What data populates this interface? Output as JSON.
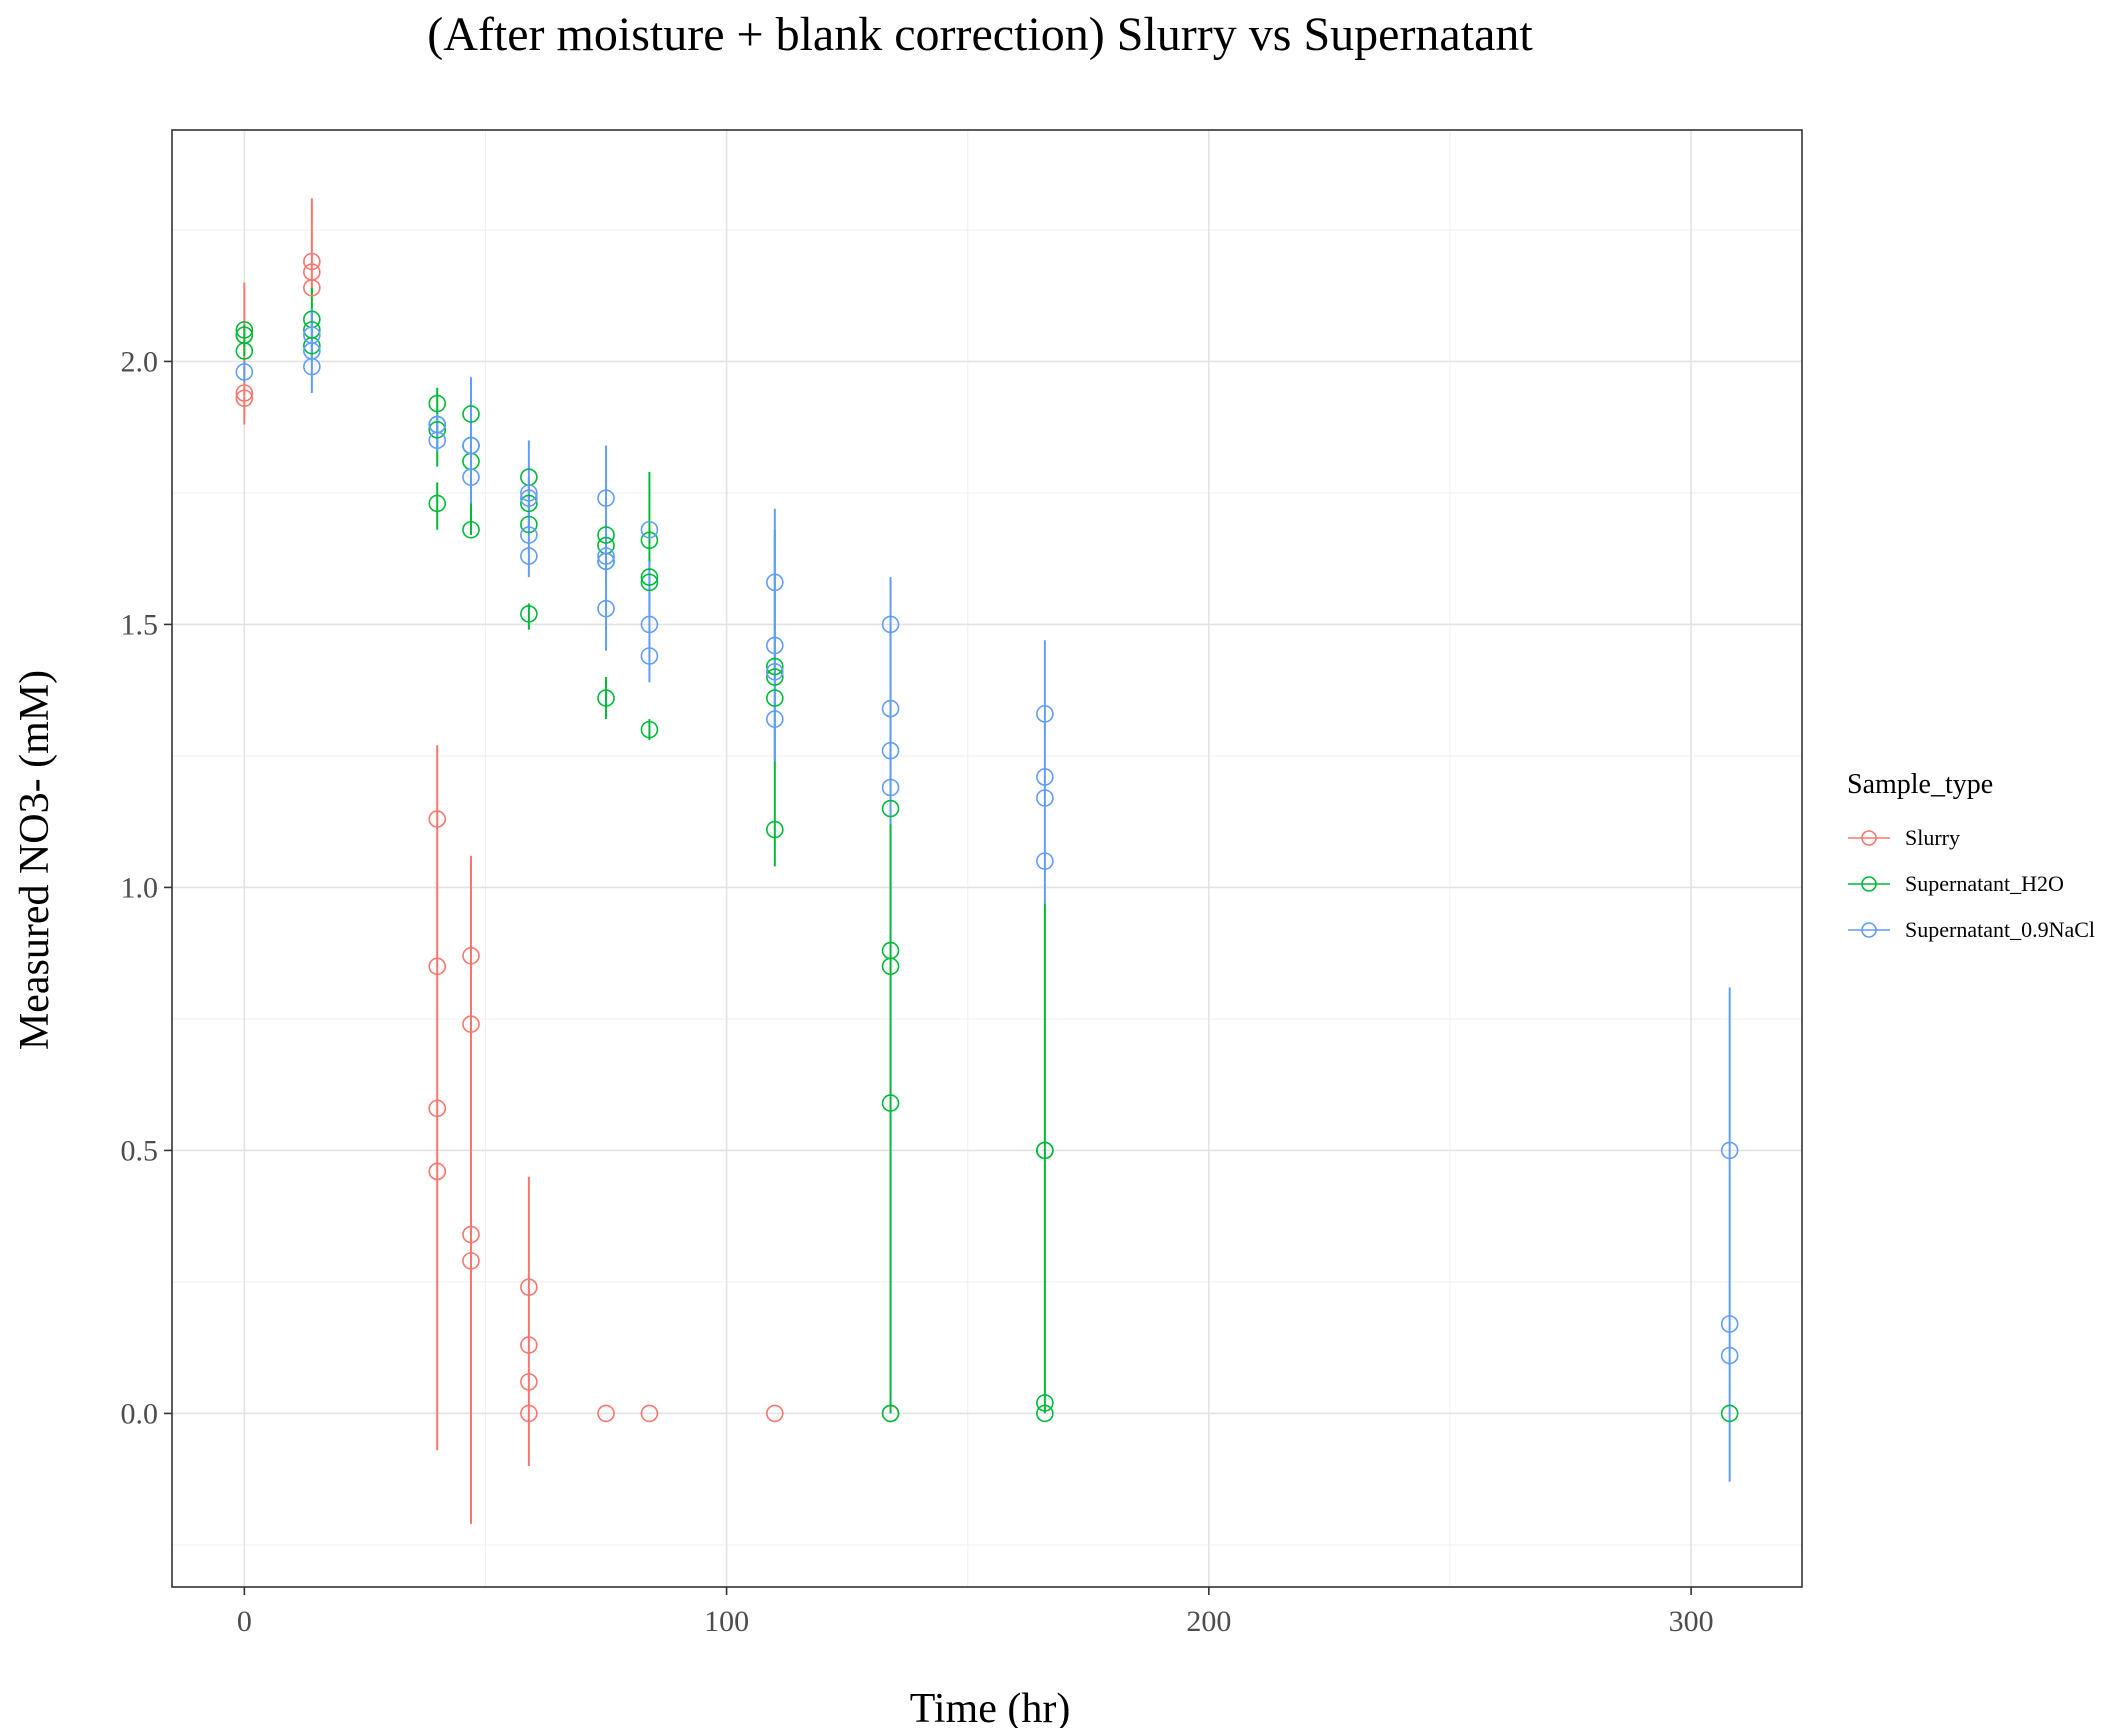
{
  "chart_data": {
    "type": "scatter",
    "title": "(After moisture + blank correction) Slurry vs Supernatant",
    "xlabel": "Time (hr)",
    "ylabel": "Measured NO3- (mM)",
    "xlim": [
      -15,
      323
    ],
    "ylim": [
      -0.33,
      2.44
    ],
    "x_ticks": [
      0,
      100,
      200,
      300
    ],
    "x_tick_labels": [
      "0",
      "100",
      "200",
      "300"
    ],
    "y_ticks": [
      0.0,
      0.5,
      1.0,
      1.5,
      2.0
    ],
    "y_tick_labels": [
      "0.0",
      "0.5",
      "1.0",
      "1.5",
      "2.0"
    ],
    "grid": true,
    "legend": {
      "title": "Sample_type",
      "placement": "right",
      "entries": [
        "Slurry",
        "Supernatant_H2O",
        "Supernatant_0.9NaCl"
      ]
    },
    "colors": {
      "Slurry": "#F8766D",
      "Supernatant_H2O": "#00BA38",
      "Supernatant_0.9NaCl": "#619CFF"
    },
    "series": [
      {
        "name": "Slurry",
        "points": [
          {
            "x": 0,
            "y": 2.05
          },
          {
            "x": 0,
            "y": 1.94
          },
          {
            "x": 0,
            "y": 1.93
          },
          {
            "x": 14,
            "y": 2.19
          },
          {
            "x": 14,
            "y": 2.17
          },
          {
            "x": 14,
            "y": 2.14
          },
          {
            "x": 40,
            "y": 1.13
          },
          {
            "x": 40,
            "y": 0.85
          },
          {
            "x": 40,
            "y": 0.58
          },
          {
            "x": 40,
            "y": 0.46
          },
          {
            "x": 47,
            "y": 0.87
          },
          {
            "x": 47,
            "y": 0.74
          },
          {
            "x": 47,
            "y": 0.34
          },
          {
            "x": 47,
            "y": 0.29
          },
          {
            "x": 59,
            "y": 0.24
          },
          {
            "x": 59,
            "y": 0.13
          },
          {
            "x": 59,
            "y": 0.06
          },
          {
            "x": 59,
            "y": 0.0
          },
          {
            "x": 75,
            "y": 0.0
          },
          {
            "x": 84,
            "y": 0.0
          },
          {
            "x": 110,
            "y": 0.0
          },
          {
            "x": 134,
            "y": 0.0
          }
        ],
        "error_bars": [
          {
            "x": 0,
            "ymin": 1.88,
            "ymax": 2.15
          },
          {
            "x": 14,
            "ymin": 2.13,
            "ymax": 2.31
          },
          {
            "x": 40,
            "ymin": -0.07,
            "ymax": 1.27
          },
          {
            "x": 47,
            "ymin": -0.21,
            "ymax": 1.06
          },
          {
            "x": 59,
            "ymin": -0.1,
            "ymax": 0.45
          }
        ]
      },
      {
        "name": "Supernatant_H2O",
        "points": [
          {
            "x": 0,
            "y": 2.06
          },
          {
            "x": 0,
            "y": 2.05
          },
          {
            "x": 0,
            "y": 2.02
          },
          {
            "x": 14,
            "y": 2.08
          },
          {
            "x": 14,
            "y": 2.06
          },
          {
            "x": 14,
            "y": 2.03
          },
          {
            "x": 40,
            "y": 1.92
          },
          {
            "x": 40,
            "y": 1.88
          },
          {
            "x": 40,
            "y": 1.87
          },
          {
            "x": 40,
            "y": 1.73
          },
          {
            "x": 47,
            "y": 1.9
          },
          {
            "x": 47,
            "y": 1.84
          },
          {
            "x": 47,
            "y": 1.81
          },
          {
            "x": 47,
            "y": 1.68
          },
          {
            "x": 59,
            "y": 1.78
          },
          {
            "x": 59,
            "y": 1.73
          },
          {
            "x": 59,
            "y": 1.69
          },
          {
            "x": 59,
            "y": 1.52
          },
          {
            "x": 75,
            "y": 1.67
          },
          {
            "x": 75,
            "y": 1.65
          },
          {
            "x": 75,
            "y": 1.62
          },
          {
            "x": 75,
            "y": 1.36
          },
          {
            "x": 84,
            "y": 1.66
          },
          {
            "x": 84,
            "y": 1.59
          },
          {
            "x": 84,
            "y": 1.58
          },
          {
            "x": 84,
            "y": 1.3
          },
          {
            "x": 110,
            "y": 1.42
          },
          {
            "x": 110,
            "y": 1.4
          },
          {
            "x": 110,
            "y": 1.36
          },
          {
            "x": 110,
            "y": 1.11
          },
          {
            "x": 134,
            "y": 1.15
          },
          {
            "x": 134,
            "y": 0.88
          },
          {
            "x": 134,
            "y": 0.85
          },
          {
            "x": 134,
            "y": 0.59
          },
          {
            "x": 134,
            "y": 0.0
          },
          {
            "x": 166,
            "y": 0.5
          },
          {
            "x": 166,
            "y": 0.5
          },
          {
            "x": 166,
            "y": 0.02
          },
          {
            "x": 166,
            "y": 0.0
          },
          {
            "x": 308,
            "y": 0.0
          }
        ],
        "error_bars": [
          {
            "x": 0,
            "ymin": 2.01,
            "ymax": 2.07
          },
          {
            "x": 14,
            "ymin": 2.0,
            "ymax": 2.14
          },
          {
            "x": 40,
            "ymin": 1.8,
            "ymax": 1.95
          },
          {
            "x": 40,
            "ymin": 1.68,
            "ymax": 1.77
          },
          {
            "x": 47,
            "ymin": 1.67,
            "ymax": 1.94
          },
          {
            "x": 59,
            "ymin": 1.68,
            "ymax": 1.78
          },
          {
            "x": 59,
            "ymin": 1.49,
            "ymax": 1.54
          },
          {
            "x": 75,
            "ymin": 1.58,
            "ymax": 1.7
          },
          {
            "x": 75,
            "ymin": 1.32,
            "ymax": 1.4
          },
          {
            "x": 84,
            "ymin": 1.52,
            "ymax": 1.79
          },
          {
            "x": 84,
            "ymin": 1.28,
            "ymax": 1.32
          },
          {
            "x": 110,
            "ymin": 1.04,
            "ymax": 1.68
          },
          {
            "x": 134,
            "ymin": 0.0,
            "ymax": 1.5
          },
          {
            "x": 166,
            "ymin": 0.0,
            "ymax": 0.97
          }
        ]
      },
      {
        "name": "Supernatant_0.9NaCl",
        "points": [
          {
            "x": 0,
            "y": 1.98
          },
          {
            "x": 14,
            "y": 2.05
          },
          {
            "x": 14,
            "y": 2.02
          },
          {
            "x": 14,
            "y": 1.99
          },
          {
            "x": 40,
            "y": 1.88
          },
          {
            "x": 40,
            "y": 1.85
          },
          {
            "x": 47,
            "y": 1.84
          },
          {
            "x": 47,
            "y": 1.78
          },
          {
            "x": 59,
            "y": 1.75
          },
          {
            "x": 59,
            "y": 1.74
          },
          {
            "x": 59,
            "y": 1.67
          },
          {
            "x": 59,
            "y": 1.63
          },
          {
            "x": 75,
            "y": 1.74
          },
          {
            "x": 75,
            "y": 1.63
          },
          {
            "x": 75,
            "y": 1.62
          },
          {
            "x": 75,
            "y": 1.53
          },
          {
            "x": 84,
            "y": 1.68
          },
          {
            "x": 84,
            "y": 1.5
          },
          {
            "x": 84,
            "y": 1.44
          },
          {
            "x": 110,
            "y": 1.58
          },
          {
            "x": 110,
            "y": 1.46
          },
          {
            "x": 110,
            "y": 1.41
          },
          {
            "x": 110,
            "y": 1.32
          },
          {
            "x": 134,
            "y": 1.5
          },
          {
            "x": 134,
            "y": 1.34
          },
          {
            "x": 134,
            "y": 1.26
          },
          {
            "x": 134,
            "y": 1.19
          },
          {
            "x": 166,
            "y": 1.33
          },
          {
            "x": 166,
            "y": 1.21
          },
          {
            "x": 166,
            "y": 1.17
          },
          {
            "x": 166,
            "y": 1.05
          },
          {
            "x": 308,
            "y": 0.5
          },
          {
            "x": 308,
            "y": 0.17
          },
          {
            "x": 308,
            "y": 0.11
          }
        ],
        "error_bars": [
          {
            "x": 0,
            "ymin": 1.96,
            "ymax": 2.0
          },
          {
            "x": 14,
            "ymin": 1.94,
            "ymax": 2.1
          },
          {
            "x": 40,
            "ymin": 1.83,
            "ymax": 1.9
          },
          {
            "x": 47,
            "ymin": 1.73,
            "ymax": 1.97
          },
          {
            "x": 59,
            "ymin": 1.59,
            "ymax": 1.85
          },
          {
            "x": 75,
            "ymin": 1.45,
            "ymax": 1.84
          },
          {
            "x": 84,
            "ymin": 1.39,
            "ymax": 1.62
          },
          {
            "x": 110,
            "ymin": 1.24,
            "ymax": 1.72
          },
          {
            "x": 134,
            "ymin": 1.12,
            "ymax": 1.59
          },
          {
            "x": 166,
            "ymin": 0.97,
            "ymax": 1.47
          },
          {
            "x": 308,
            "ymin": -0.13,
            "ymax": 0.81
          }
        ]
      }
    ]
  }
}
